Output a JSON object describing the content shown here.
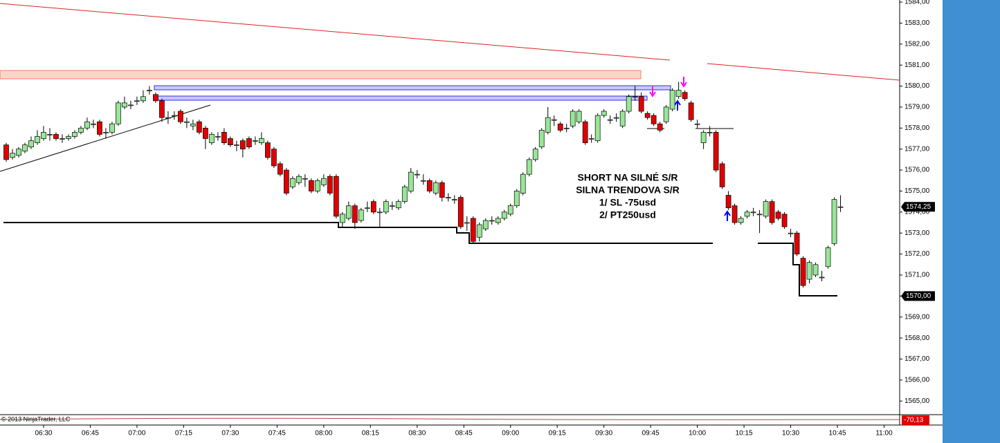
{
  "chart_data": {
    "type": "candlestick",
    "up_color": "#98e698",
    "down_color": "#e00000",
    "xlim": [
      "06:16",
      "11:05"
    ],
    "xticks": [
      "06:30",
      "06:45",
      "07:00",
      "07:15",
      "07:30",
      "07:45",
      "08:00",
      "08:15",
      "08:30",
      "08:45",
      "09:00",
      "09:15",
      "09:30",
      "09:45",
      "10:00",
      "10:15",
      "10:30",
      "10:45",
      "11:00"
    ],
    "ylim": [
      1564.35,
      1584.1
    ],
    "yticks": [
      {
        "value": 1584,
        "label": "1584,00"
      },
      {
        "value": 1583,
        "label": "1583,00"
      },
      {
        "value": 1582,
        "label": "1582,00"
      },
      {
        "value": 1581,
        "label": "1581,00"
      },
      {
        "value": 1580,
        "label": "1580,00"
      },
      {
        "value": 1579,
        "label": "1579,00"
      },
      {
        "value": 1578,
        "label": "1578,00"
      },
      {
        "value": 1577,
        "label": "1577,00"
      },
      {
        "value": 1576,
        "label": "1576,00"
      },
      {
        "value": 1575,
        "label": "1575,00"
      },
      {
        "value": 1574,
        "label": "1574,00"
      },
      {
        "value": 1573,
        "label": "1573,00"
      },
      {
        "value": 1572,
        "label": "1572,00"
      },
      {
        "value": 1571,
        "label": "1571,00"
      },
      {
        "value": 1570,
        "label": "1570,00"
      },
      {
        "value": 1569,
        "label": "1569,00"
      },
      {
        "value": 1568,
        "label": "1568,00"
      },
      {
        "value": 1567,
        "label": "1567,00"
      },
      {
        "value": 1566,
        "label": "1566,00"
      },
      {
        "value": 1565,
        "label": "1565,00"
      }
    ],
    "price_labels": [
      {
        "value": 1574.25,
        "label": "1574,25"
      },
      {
        "value": 1570,
        "label": "1570,00"
      }
    ],
    "indicator_label": "-70,13",
    "copyright": "© 2013 NinjaTrader, LLC",
    "annotation": [
      "SHORT NA  SILNÉ S/R",
      "SILNA TRENDOVA S/R",
      "1/ SL -75usd",
      "2/ PT250usd"
    ],
    "candles": [
      [
        "06:18",
        1577.2,
        1577.3,
        1576.4,
        1576.5
      ],
      [
        "06:20",
        1576.6,
        1577.0,
        1576.5,
        1576.8
      ],
      [
        "06:22",
        1576.7,
        1577.1,
        1576.6,
        1577.0
      ],
      [
        "06:24",
        1576.9,
        1577.3,
        1576.8,
        1577.2
      ],
      [
        "06:26",
        1577.1,
        1577.6,
        1577.0,
        1577.4
      ],
      [
        "06:28",
        1577.3,
        1577.9,
        1577.2,
        1577.6
      ],
      [
        "06:30",
        1577.5,
        1578.1,
        1577.4,
        1577.8
      ],
      [
        "06:32",
        1577.7,
        1578.0,
        1577.4,
        1577.7
      ],
      [
        "06:34",
        1577.7,
        1577.8,
        1577.4,
        1577.5
      ],
      [
        "06:36",
        1577.5,
        1577.7,
        1577.3,
        1577.5
      ],
      [
        "06:38",
        1577.5,
        1577.7,
        1577.4,
        1577.6
      ],
      [
        "06:40",
        1577.6,
        1577.9,
        1577.5,
        1577.8
      ],
      [
        "06:42",
        1577.8,
        1578.1,
        1577.7,
        1578.0
      ],
      [
        "06:44",
        1578.0,
        1578.5,
        1577.9,
        1578.3
      ],
      [
        "06:46",
        1578.2,
        1578.4,
        1578.0,
        1578.2
      ],
      [
        "06:48",
        1578.3,
        1578.4,
        1577.6,
        1577.7
      ],
      [
        "06:50",
        1577.8,
        1578.0,
        1577.5,
        1577.8
      ],
      [
        "06:52",
        1577.8,
        1578.3,
        1577.7,
        1578.2
      ],
      [
        "06:54",
        1578.2,
        1579.3,
        1578.1,
        1579.2
      ],
      [
        "06:56",
        1579.0,
        1579.5,
        1578.9,
        1579.2
      ],
      [
        "06:58",
        1579.1,
        1579.3,
        1578.9,
        1579.1
      ],
      [
        "07:00",
        1579.3,
        1579.5,
        1579.1,
        1579.3
      ],
      [
        "07:02",
        1579.3,
        1579.8,
        1579.2,
        1579.5
      ],
      [
        "07:04",
        1579.8,
        1580.0,
        1579.6,
        1579.8
      ],
      [
        "07:06",
        1579.6,
        1579.7,
        1579.2,
        1579.3
      ],
      [
        "07:08",
        1579.3,
        1579.4,
        1578.3,
        1578.5
      ],
      [
        "07:10",
        1578.5,
        1578.8,
        1578.2,
        1578.5
      ],
      [
        "07:12",
        1578.6,
        1578.8,
        1578.4,
        1578.6
      ],
      [
        "07:14",
        1578.8,
        1578.9,
        1578.2,
        1578.3
      ],
      [
        "07:16",
        1578.3,
        1578.5,
        1578.0,
        1578.3
      ],
      [
        "07:18",
        1578.1,
        1578.4,
        1577.9,
        1578.2
      ],
      [
        "07:20",
        1578.3,
        1578.4,
        1577.7,
        1577.8
      ],
      [
        "07:22",
        1578.0,
        1578.1,
        1577.0,
        1577.5
      ],
      [
        "07:24",
        1577.3,
        1577.8,
        1577.2,
        1577.7
      ],
      [
        "07:26",
        1577.6,
        1577.8,
        1577.4,
        1577.6
      ],
      [
        "07:28",
        1577.8,
        1578.0,
        1577.2,
        1577.3
      ],
      [
        "07:30",
        1577.5,
        1577.6,
        1577.1,
        1577.2
      ],
      [
        "07:32",
        1577.2,
        1577.4,
        1576.9,
        1577.2
      ],
      [
        "07:34",
        1577.4,
        1577.5,
        1576.6,
        1577.0
      ],
      [
        "07:36",
        1577.5,
        1577.6,
        1577.0,
        1577.1
      ],
      [
        "07:38",
        1577.4,
        1577.6,
        1577.2,
        1577.4
      ],
      [
        "07:40",
        1577.3,
        1577.8,
        1577.2,
        1577.5
      ],
      [
        "07:42",
        1577.3,
        1577.4,
        1576.5,
        1576.6
      ],
      [
        "07:44",
        1577.0,
        1577.1,
        1576.1,
        1576.2
      ],
      [
        "07:46",
        1576.3,
        1576.4,
        1575.7,
        1575.8
      ],
      [
        "07:48",
        1576.0,
        1576.1,
        1574.8,
        1574.9
      ],
      [
        "07:50",
        1575.2,
        1575.7,
        1575.1,
        1575.6
      ],
      [
        "07:52",
        1575.4,
        1575.8,
        1575.3,
        1575.7
      ],
      [
        "07:54",
        1575.6,
        1575.8,
        1575.2,
        1575.6
      ],
      [
        "07:56",
        1575.5,
        1575.6,
        1574.9,
        1575.0
      ],
      [
        "07:58",
        1575.0,
        1575.6,
        1574.9,
        1575.5
      ],
      [
        "08:00",
        1575.3,
        1575.8,
        1575.2,
        1575.6
      ],
      [
        "08:02",
        1575.7,
        1575.8,
        1574.8,
        1574.9
      ],
      [
        "08:04",
        1575.7,
        1575.8,
        1573.7,
        1573.8
      ],
      [
        "08:06",
        1573.5,
        1574.0,
        1573.3,
        1573.9
      ],
      [
        "08:08",
        1573.7,
        1574.5,
        1573.6,
        1574.3
      ],
      [
        "08:10",
        1574.3,
        1574.4,
        1573.2,
        1573.5
      ],
      [
        "08:12",
        1573.6,
        1574.2,
        1573.5,
        1574.1
      ],
      [
        "08:14",
        1574.2,
        1574.5,
        1574.0,
        1574.2
      ],
      [
        "08:16",
        1574.5,
        1574.6,
        1573.9,
        1574.0
      ],
      [
        "08:18",
        1574.0,
        1574.2,
        1573.3,
        1574.0
      ],
      [
        "08:20",
        1574.0,
        1574.6,
        1573.9,
        1574.5
      ],
      [
        "08:22",
        1574.3,
        1574.5,
        1574.1,
        1574.3
      ],
      [
        "08:24",
        1574.2,
        1574.6,
        1574.1,
        1574.5
      ],
      [
        "08:26",
        1574.5,
        1575.3,
        1574.4,
        1575.2
      ],
      [
        "08:28",
        1575.0,
        1576.1,
        1574.9,
        1575.9
      ],
      [
        "08:30",
        1575.8,
        1576.0,
        1575.6,
        1575.8
      ],
      [
        "08:32",
        1575.5,
        1575.8,
        1575.3,
        1575.5
      ],
      [
        "08:34",
        1575.5,
        1575.6,
        1574.9,
        1575.0
      ],
      [
        "08:36",
        1574.9,
        1575.5,
        1574.8,
        1575.4
      ],
      [
        "08:38",
        1575.4,
        1575.5,
        1574.5,
        1574.7
      ],
      [
        "08:40",
        1574.7,
        1574.9,
        1574.5,
        1574.7
      ],
      [
        "08:42",
        1574.6,
        1574.8,
        1574.4,
        1574.6
      ],
      [
        "08:44",
        1574.7,
        1574.8,
        1573.2,
        1573.3
      ],
      [
        "08:46",
        1573.5,
        1573.8,
        1573.1,
        1573.5
      ],
      [
        "08:48",
        1573.7,
        1573.8,
        1572.5,
        1572.6
      ],
      [
        "08:50",
        1572.8,
        1573.5,
        1572.6,
        1573.4
      ],
      [
        "08:52",
        1573.2,
        1573.7,
        1573.1,
        1573.6
      ],
      [
        "08:54",
        1573.6,
        1573.8,
        1573.4,
        1573.6
      ],
      [
        "08:56",
        1573.5,
        1573.8,
        1573.4,
        1573.7
      ],
      [
        "08:58",
        1573.7,
        1574.1,
        1573.6,
        1574.0
      ],
      [
        "09:00",
        1573.9,
        1574.4,
        1573.8,
        1574.3
      ],
      [
        "09:02",
        1574.3,
        1575.1,
        1574.2,
        1575.0
      ],
      [
        "09:04",
        1574.9,
        1575.9,
        1574.8,
        1575.8
      ],
      [
        "09:06",
        1575.8,
        1576.6,
        1575.7,
        1576.5
      ],
      [
        "09:08",
        1576.5,
        1577.1,
        1576.4,
        1577.0
      ],
      [
        "09:10",
        1577.1,
        1578.0,
        1577.0,
        1577.9
      ],
      [
        "09:12",
        1577.8,
        1579.0,
        1577.7,
        1578.5
      ],
      [
        "09:14",
        1578.4,
        1578.6,
        1578.1,
        1578.4
      ],
      [
        "09:16",
        1578.2,
        1578.3,
        1577.8,
        1577.9
      ],
      [
        "09:18",
        1578.0,
        1578.2,
        1577.8,
        1578.0
      ],
      [
        "09:20",
        1578.1,
        1578.9,
        1578.0,
        1578.8
      ],
      [
        "09:22",
        1578.3,
        1578.9,
        1578.2,
        1578.8
      ],
      [
        "09:24",
        1578.3,
        1578.4,
        1577.2,
        1577.3
      ],
      [
        "09:26",
        1577.5,
        1577.7,
        1577.3,
        1577.5
      ],
      [
        "09:28",
        1577.4,
        1578.7,
        1577.3,
        1578.6
      ],
      [
        "09:30",
        1578.6,
        1578.9,
        1578.5,
        1578.8
      ],
      [
        "09:32",
        1578.4,
        1578.6,
        1578.2,
        1578.4
      ],
      [
        "09:34",
        1578.5,
        1578.7,
        1578.3,
        1578.5
      ],
      [
        "09:36",
        1578.1,
        1578.9,
        1578.0,
        1578.8
      ],
      [
        "09:38",
        1578.8,
        1579.6,
        1578.7,
        1579.5
      ],
      [
        "09:40",
        1579.5,
        1580.0,
        1579.3,
        1579.5
      ],
      [
        "09:42",
        1579.5,
        1579.7,
        1578.7,
        1578.8
      ],
      [
        "09:44",
        1578.7,
        1578.8,
        1578.4,
        1578.5
      ],
      [
        "09:46",
        1578.6,
        1578.7,
        1578.1,
        1578.2
      ],
      [
        "09:48",
        1578.2,
        1578.3,
        1577.8,
        1577.9
      ],
      [
        "09:50",
        1578.3,
        1579.1,
        1578.2,
        1579.0
      ],
      [
        "09:52",
        1578.9,
        1579.9,
        1578.8,
        1579.8
      ],
      [
        "09:54",
        1579.5,
        1580.2,
        1579.4,
        1579.8
      ],
      [
        "09:56",
        1579.7,
        1579.8,
        1579.3,
        1579.4
      ],
      [
        "09:58",
        1579.2,
        1579.3,
        1578.3,
        1578.4
      ],
      [
        "10:00",
        1578.2,
        1578.4,
        1578.0,
        1578.2
      ],
      [
        "10:02",
        1577.3,
        1577.9,
        1577.0,
        1577.8
      ],
      [
        "10:04",
        1577.8,
        1578.1,
        1577.6,
        1577.8
      ],
      [
        "10:06",
        1577.8,
        1577.9,
        1575.9,
        1576.0
      ],
      [
        "10:08",
        1576.3,
        1576.4,
        1575.1,
        1575.2
      ],
      [
        "10:10",
        1574.8,
        1575.0,
        1574.1,
        1574.2
      ],
      [
        "10:12",
        1574.3,
        1574.4,
        1573.4,
        1573.5
      ],
      [
        "10:14",
        1573.5,
        1573.8,
        1573.4,
        1573.7
      ],
      [
        "10:16",
        1573.8,
        1574.1,
        1573.7,
        1574.0
      ],
      [
        "10:18",
        1574.0,
        1574.2,
        1573.8,
        1574.0
      ],
      [
        "10:20",
        1573.9,
        1574.1,
        1573.0,
        1573.9
      ],
      [
        "10:22",
        1573.8,
        1574.6,
        1573.7,
        1574.5
      ],
      [
        "10:24",
        1574.5,
        1574.6,
        1573.4,
        1573.5
      ],
      [
        "10:26",
        1574.0,
        1574.1,
        1573.6,
        1573.7
      ],
      [
        "10:28",
        1573.9,
        1574.0,
        1573.2,
        1573.3
      ],
      [
        "10:30",
        1573.0,
        1573.2,
        1572.8,
        1573.0
      ],
      [
        "10:32",
        1573.0,
        1573.1,
        1571.9,
        1572.0
      ],
      [
        "10:34",
        1571.8,
        1571.9,
        1570.4,
        1570.5
      ],
      [
        "10:36",
        1570.8,
        1571.7,
        1570.6,
        1571.6
      ],
      [
        "10:38",
        1571.0,
        1571.6,
        1570.9,
        1571.5
      ],
      [
        "10:40",
        1570.9,
        1571.2,
        1570.7,
        1570.9
      ],
      [
        "10:42",
        1571.4,
        1572.4,
        1571.3,
        1572.3
      ],
      [
        "10:44",
        1572.5,
        1574.7,
        1572.4,
        1574.6
      ],
      [
        "10:46",
        1574.25,
        1574.8,
        1574.0,
        1574.25
      ]
    ]
  }
}
